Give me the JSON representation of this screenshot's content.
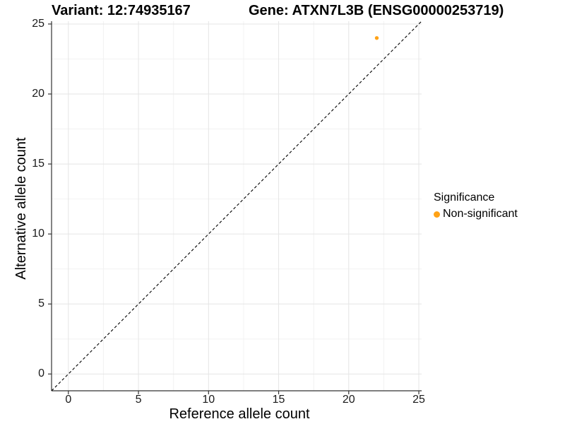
{
  "chart_data": {
    "type": "scatter",
    "title_left": "Variant: 12:74935167",
    "title_right": "Gene: ATXN7L3B (ENSG00000253719)",
    "xlabel": "Reference allele count",
    "ylabel": "Alternative allele count",
    "xlim": [
      -1.2,
      25.2
    ],
    "ylim": [
      -1.2,
      25.2
    ],
    "xticks": [
      0,
      5,
      10,
      15,
      20,
      25
    ],
    "yticks": [
      0,
      5,
      10,
      15,
      20,
      25
    ],
    "xminor": [
      2.5,
      7.5,
      12.5,
      17.5,
      22.5
    ],
    "yminor": [
      2.5,
      7.5,
      12.5,
      17.5,
      22.5
    ],
    "grid": "major+minor",
    "background_color": "#FFFFFF",
    "grid_major_color": "#E5E5E5",
    "grid_minor_color": "#F2F2F2",
    "axis_line_color": "#333333",
    "tick_mark_color": "#333333",
    "identity_line": {
      "equation": "y = x",
      "style": "dashed",
      "color": "#000000"
    },
    "series": [
      {
        "name": "Non-significant",
        "color": "#FFA216",
        "points": [
          {
            "x": 22,
            "y": 24
          }
        ]
      }
    ],
    "legend": {
      "title": "Significance",
      "position": "right",
      "entries": [
        {
          "label": "Non-significant",
          "color": "#FFA216"
        }
      ]
    }
  }
}
